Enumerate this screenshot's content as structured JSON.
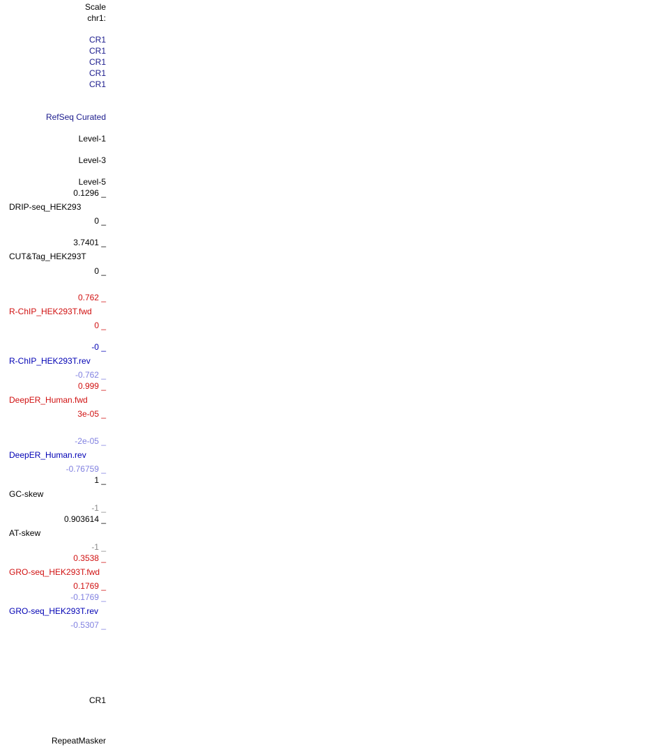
{
  "labels": [
    {
      "text": "Scale"
    },
    {
      "text": "chr1:"
    },
    {
      "text": "CR1"
    },
    {
      "text": "CR1"
    },
    {
      "text": "CR1"
    },
    {
      "text": "CR1"
    },
    {
      "text": "CR1"
    },
    {
      "text": "RefSeq Curated"
    },
    {
      "text": "Level-1"
    },
    {
      "text": "Level-3"
    },
    {
      "text": "Level-5"
    },
    {
      "text": "0.1296 _"
    },
    {
      "text": "DRIP-seq_HEK293"
    },
    {
      "text": "0 _"
    },
    {
      "text": "3.7401 _"
    },
    {
      "text": "CUT&Tag_HEK293T"
    },
    {
      "text": "0 _"
    },
    {
      "text": "0.762 _"
    },
    {
      "text": "R-ChIP_HEK293T.fwd"
    },
    {
      "text": "0 _"
    },
    {
      "text": "-0 _"
    },
    {
      "text": "R-ChIP_HEK293T.rev"
    },
    {
      "text": "-0.762 _"
    },
    {
      "text": "0.999 _"
    },
    {
      "text": "DeepER_Human.fwd"
    },
    {
      "text": "3e-05 _"
    },
    {
      "text": "-2e-05 _"
    },
    {
      "text": "DeepER_Human.rev"
    },
    {
      "text": "-0.76759 _"
    },
    {
      "text": "1 _"
    },
    {
      "text": "GC-skew"
    },
    {
      "text": "-1 _"
    },
    {
      "text": "0.903614 _"
    },
    {
      "text": "AT-skew"
    },
    {
      "text": "-1 _"
    },
    {
      "text": "0.3538 _"
    },
    {
      "text": "GRO-seq_HEK293T.fwd"
    },
    {
      "text": "0.1769 _"
    },
    {
      "text": "-0.1769 _"
    },
    {
      "text": "GRO-seq_HEK293T.rev"
    },
    {
      "text": "-0.5307 _"
    },
    {
      "text": "CR1"
    },
    {
      "text": "RepeatMasker"
    }
  ]
}
